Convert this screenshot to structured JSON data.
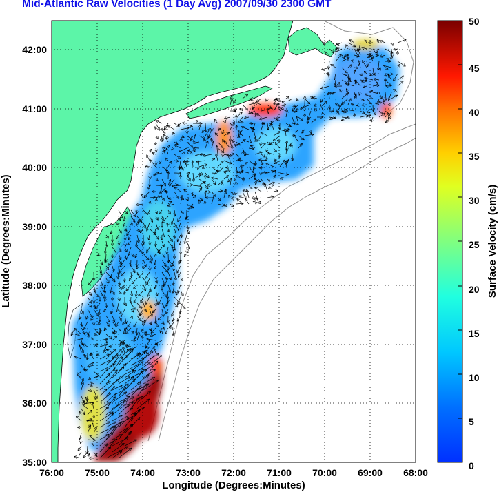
{
  "title": "Mid-Atlantic Raw Velocities (1 Day Avg) 2007/09/30 2300 GMT",
  "map": {
    "xlabel": "Longitude (Degrees:Minutes)",
    "ylabel": "Latitude (Degrees:Minutes)",
    "x_ticks": [
      {
        "value": -76,
        "label": "76:00"
      },
      {
        "value": -75,
        "label": "75:00"
      },
      {
        "value": -74,
        "label": "74:00"
      },
      {
        "value": -73,
        "label": "73:00"
      },
      {
        "value": -72,
        "label": "72:00"
      },
      {
        "value": -71,
        "label": "71:00"
      },
      {
        "value": -70,
        "label": "70:00"
      },
      {
        "value": -69,
        "label": "69:00"
      },
      {
        "value": -68,
        "label": "68:00"
      }
    ],
    "y_ticks": [
      {
        "value": 42,
        "label": "42:00"
      },
      {
        "value": 41,
        "label": "41:00"
      },
      {
        "value": 40,
        "label": "40:00"
      },
      {
        "value": 39,
        "label": "39:00"
      },
      {
        "value": 38,
        "label": "38:00"
      },
      {
        "value": 37,
        "label": "37:00"
      },
      {
        "value": 36,
        "label": "36:00"
      },
      {
        "value": 35,
        "label": "35:00"
      }
    ],
    "lon_range": [
      -76,
      -68
    ],
    "lat_range": [
      35,
      42.5
    ],
    "grid": "dotted",
    "land_color": "#5cf5a8"
  },
  "colorbar": {
    "label": "Surface Velocity (cm/s)",
    "range": [
      0,
      50
    ],
    "ticks": [
      {
        "value": 0,
        "label": "0"
      },
      {
        "value": 5,
        "label": "5"
      },
      {
        "value": 10,
        "label": "10"
      },
      {
        "value": 15,
        "label": "15"
      },
      {
        "value": 20,
        "label": "20"
      },
      {
        "value": 25,
        "label": "25"
      },
      {
        "value": 30,
        "label": "30"
      },
      {
        "value": 35,
        "label": "35"
      },
      {
        "value": 40,
        "label": "40"
      },
      {
        "value": 45,
        "label": "45"
      },
      {
        "value": 50,
        "label": "50"
      }
    ],
    "colormap": "jet"
  }
}
